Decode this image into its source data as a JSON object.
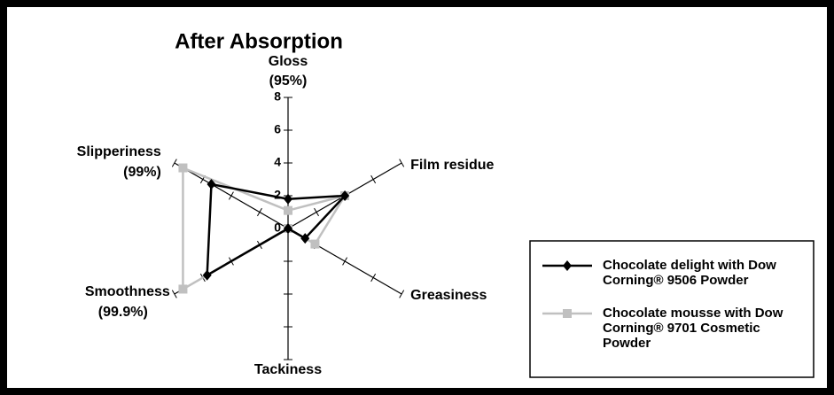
{
  "chart_data": {
    "type": "radar",
    "title": "After Absorption",
    "categories": [
      "Gloss",
      "Film residue",
      "Greasiness",
      "Tackiness",
      "Smoothness",
      "Slipperiness"
    ],
    "category_percentages": [
      "(95%)",
      null,
      null,
      null,
      "(99.9%)",
      "(99%)"
    ],
    "rlim": [
      0,
      8
    ],
    "rticks": [
      0,
      2,
      4,
      6,
      8
    ],
    "series": [
      {
        "name": "Chocolate delight with Dow Corning® 9506 Powder",
        "color": "#000000",
        "marker": "diamond",
        "values": [
          1.8,
          4,
          1.2,
          0,
          5.7,
          5.4
        ]
      },
      {
        "name": "Chocolate mousse with Dow Corning® 9701 Cosmetic Powder",
        "color": "#c0c0c0",
        "marker": "square",
        "values": [
          1.1,
          4,
          1.9,
          0,
          7.4,
          7.4
        ]
      }
    ]
  }
}
